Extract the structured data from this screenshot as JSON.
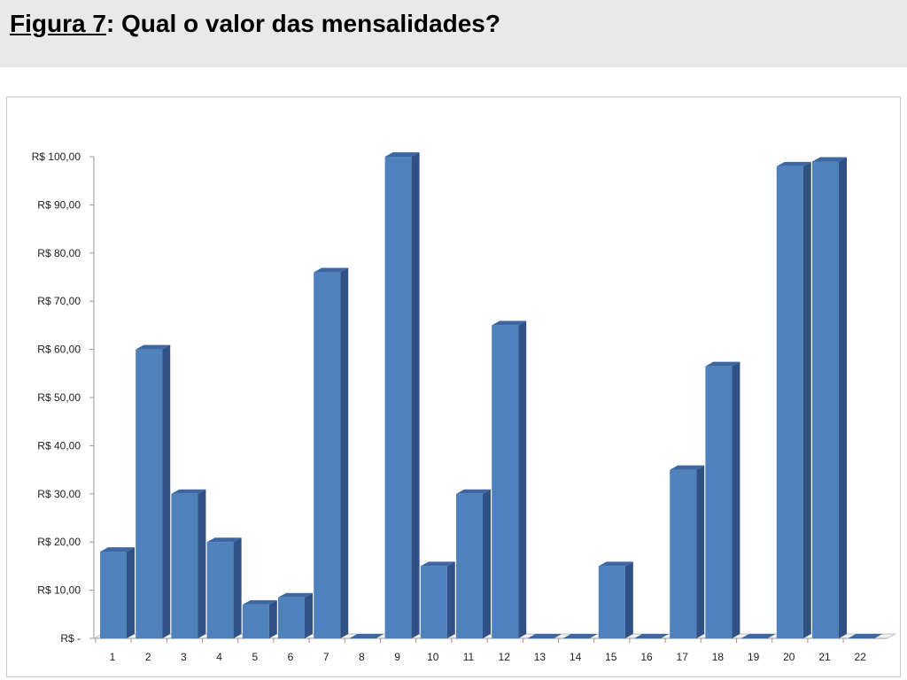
{
  "header": {
    "figure_label": "Figura 7",
    "title_text": ": Qual o valor das mensalidades?"
  },
  "chart_data": {
    "type": "bar",
    "categories": [
      "1",
      "2",
      "3",
      "4",
      "5",
      "6",
      "7",
      "8",
      "9",
      "10",
      "11",
      "12",
      "13",
      "14",
      "15",
      "16",
      "17",
      "18",
      "19",
      "20",
      "21",
      "22"
    ],
    "values": [
      18,
      60,
      30,
      20,
      7,
      8.5,
      76,
      0,
      100,
      15,
      30,
      65,
      0,
      0,
      15,
      0,
      35,
      56.5,
      0,
      98,
      99,
      0
    ],
    "y_ticks": [
      "R$ -",
      "R$ 10,00",
      "R$ 20,00",
      "R$ 30,00",
      "R$ 40,00",
      "R$ 50,00",
      "R$ 60,00",
      "R$ 70,00",
      "R$ 80,00",
      "R$ 90,00",
      "R$ 100,00"
    ],
    "ylim": [
      0,
      100
    ],
    "grid": false,
    "legend": "none",
    "colors": {
      "front": "#4f81bd",
      "side": "#2f5185",
      "top": "#3d67a3",
      "axis": "#999999"
    }
  }
}
